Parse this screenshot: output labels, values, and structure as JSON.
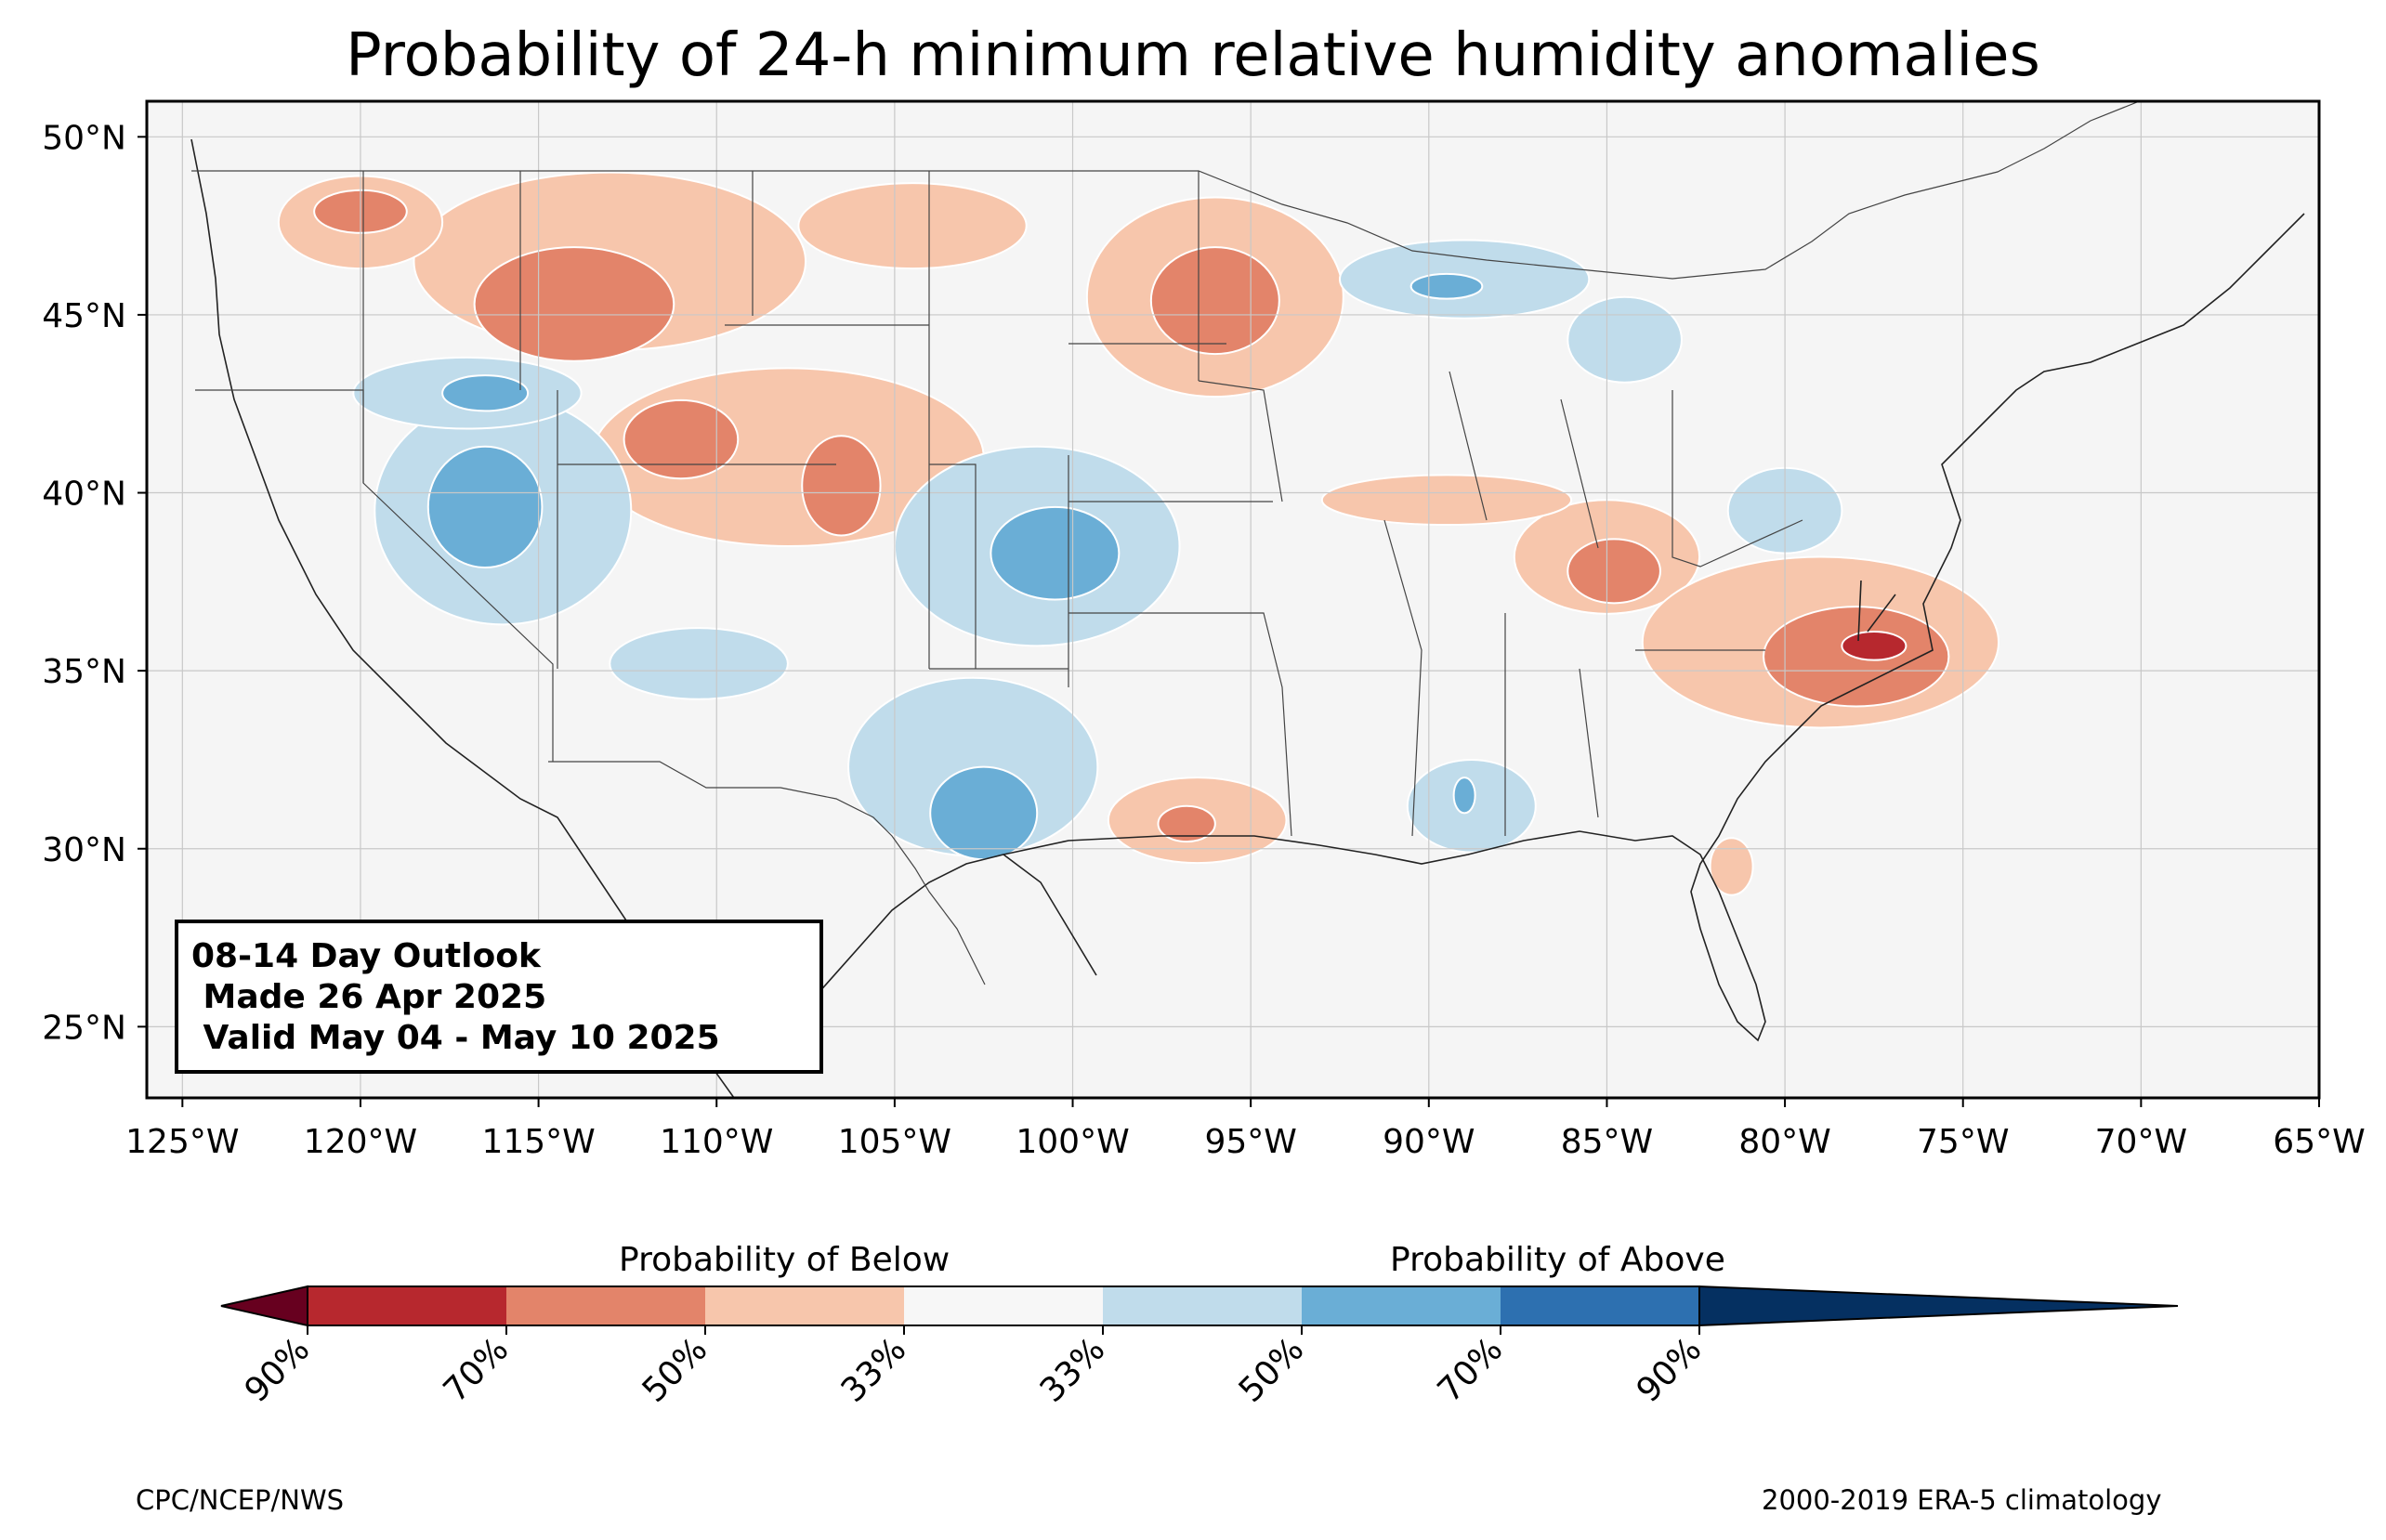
{
  "title": "Probability of 24-h minimum relative humidity anomalies",
  "map": {
    "longitude_ticks": [
      "125°W",
      "120°W",
      "115°W",
      "110°W",
      "105°W",
      "100°W",
      "95°W",
      "90°W",
      "85°W",
      "80°W",
      "75°W",
      "70°W",
      "65°W"
    ],
    "latitude_ticks": [
      "25°N",
      "30°N",
      "35°N",
      "40°N",
      "45°N",
      "50°N"
    ],
    "lon_range": [
      -126,
      -65
    ],
    "lat_range": [
      23,
      51
    ],
    "gridlines": true,
    "background_color": "#f5f5f5",
    "regions": [
      {
        "category": "below-33",
        "color": "#f7c6ac",
        "lon": -113,
        "lat": 46.5,
        "rx": 5.5,
        "ry": 2.5
      },
      {
        "category": "below-50",
        "color": "#e3846a",
        "lon": -114,
        "lat": 45.3,
        "rx": 2.8,
        "ry": 1.6
      },
      {
        "category": "below-33",
        "color": "#f7c6ac",
        "lon": -120,
        "lat": 47.6,
        "rx": 2.3,
        "ry": 1.3
      },
      {
        "category": "below-50",
        "color": "#e3846a",
        "lon": -120,
        "lat": 47.9,
        "rx": 1.3,
        "ry": 0.6
      },
      {
        "category": "below-33",
        "color": "#f7c6ac",
        "lon": -104.5,
        "lat": 47.5,
        "rx": 3.2,
        "ry": 1.2
      },
      {
        "category": "below-33",
        "color": "#f7c6ac",
        "lon": -108,
        "lat": 41,
        "rx": 5.5,
        "ry": 2.5
      },
      {
        "category": "below-50",
        "color": "#e3846a",
        "lon": -111,
        "lat": 41.5,
        "rx": 1.6,
        "ry": 1.1
      },
      {
        "category": "below-50",
        "color": "#e3846a",
        "lon": -106.5,
        "lat": 40.2,
        "rx": 1.1,
        "ry": 1.4
      },
      {
        "category": "below-33",
        "color": "#f7c6ac",
        "lon": -96,
        "lat": 45.5,
        "rx": 3.6,
        "ry": 2.8
      },
      {
        "category": "below-50",
        "color": "#e3846a",
        "lon": -96,
        "lat": 45.4,
        "rx": 1.8,
        "ry": 1.5
      },
      {
        "category": "below-33",
        "color": "#f7c6ac",
        "lon": -85,
        "lat": 38.2,
        "rx": 2.6,
        "ry": 1.6
      },
      {
        "category": "below-50",
        "color": "#e3846a",
        "lon": -84.8,
        "lat": 37.8,
        "rx": 1.3,
        "ry": 0.9
      },
      {
        "category": "below-33",
        "color": "#f7c6ac",
        "lon": -79,
        "lat": 35.8,
        "rx": 5,
        "ry": 2.4
      },
      {
        "category": "below-50",
        "color": "#e3846a",
        "lon": -78,
        "lat": 35.4,
        "rx": 2.6,
        "ry": 1.4
      },
      {
        "category": "below-70",
        "color": "#b7282e",
        "lon": -77.5,
        "lat": 35.7,
        "rx": 0.9,
        "ry": 0.4
      },
      {
        "category": "below-33",
        "color": "#f7c6ac",
        "lon": -96.5,
        "lat": 30.8,
        "rx": 2.5,
        "ry": 1.2
      },
      {
        "category": "below-50",
        "color": "#e3846a",
        "lon": -96.8,
        "lat": 30.7,
        "rx": 0.8,
        "ry": 0.5
      },
      {
        "category": "below-33",
        "color": "#f7c6ac",
        "lon": -89.5,
        "lat": 39.8,
        "rx": 3.5,
        "ry": 0.7
      },
      {
        "category": "below-33",
        "color": "#f7c6ac",
        "lon": -81.5,
        "lat": 29.5,
        "rx": 0.6,
        "ry": 0.8
      },
      {
        "category": "above-33",
        "color": "#c0dceb",
        "lon": -116,
        "lat": 39.5,
        "rx": 3.6,
        "ry": 3.2
      },
      {
        "category": "above-50",
        "color": "#6aaed6",
        "lon": -116.5,
        "lat": 39.6,
        "rx": 1.6,
        "ry": 1.7
      },
      {
        "category": "above-33",
        "color": "#c0dceb",
        "lon": -117,
        "lat": 42.8,
        "rx": 3.2,
        "ry": 1.0
      },
      {
        "category": "above-50",
        "color": "#6aaed6",
        "lon": -116.5,
        "lat": 42.8,
        "rx": 1.2,
        "ry": 0.5
      },
      {
        "category": "above-33",
        "color": "#c0dceb",
        "lon": -101,
        "lat": 38.5,
        "rx": 4,
        "ry": 2.8
      },
      {
        "category": "above-50",
        "color": "#6aaed6",
        "lon": -100.5,
        "lat": 38.3,
        "rx": 1.8,
        "ry": 1.3
      },
      {
        "category": "above-33",
        "color": "#c0dceb",
        "lon": -102.8,
        "lat": 32.3,
        "rx": 3.5,
        "ry": 2.5
      },
      {
        "category": "above-50",
        "color": "#6aaed6",
        "lon": -102.5,
        "lat": 31,
        "rx": 1.5,
        "ry": 1.3
      },
      {
        "category": "above-33",
        "color": "#c0dceb",
        "lon": -88.8,
        "lat": 31.2,
        "rx": 1.8,
        "ry": 1.3
      },
      {
        "category": "above-50",
        "color": "#6aaed6",
        "lon": -89,
        "lat": 31.5,
        "rx": 0.3,
        "ry": 0.5
      },
      {
        "category": "above-33",
        "color": "#c0dceb",
        "lon": -89,
        "lat": 46,
        "rx": 3.5,
        "ry": 1.1
      },
      {
        "category": "above-50",
        "color": "#6aaed6",
        "lon": -89.5,
        "lat": 45.8,
        "rx": 1.0,
        "ry": 0.35
      },
      {
        "category": "above-33",
        "color": "#c0dceb",
        "lon": -84.5,
        "lat": 44.3,
        "rx": 1.6,
        "ry": 1.2
      },
      {
        "category": "above-33",
        "color": "#c0dceb",
        "lon": -80,
        "lat": 39.5,
        "rx": 1.6,
        "ry": 1.2
      },
      {
        "category": "above-33",
        "color": "#c0dceb",
        "lon": -110.5,
        "lat": 35.2,
        "rx": 2.5,
        "ry": 1.0
      }
    ]
  },
  "info_box": {
    "line1": "08-14 Day Outlook",
    "line2": " Made 26 Apr 2025",
    "line3": " Valid May 04 - May 10 2025"
  },
  "colorbar": {
    "below_label": "Probability of Below",
    "above_label": "Probability of Above",
    "colors": [
      "#67001f",
      "#b2182b",
      "#d6604d",
      "#f4a582",
      "#fddbc7",
      "#f7f7f7",
      "#d1e5f0",
      "#92c5de",
      "#4393c3",
      "#2166ac",
      "#053061"
    ],
    "bins": [
      {
        "color": "#b7282e"
      },
      {
        "color": "#e3846a"
      },
      {
        "color": "#f7c6ac"
      },
      {
        "color": "#f7f7f7"
      },
      {
        "color": "#c0dceb"
      },
      {
        "color": "#6aaed6"
      },
      {
        "color": "#2d70b0"
      }
    ],
    "end_colors": {
      "low": "#67001f",
      "high": "#053061"
    },
    "tick_labels": [
      "90%",
      "70%",
      "50%",
      "33%",
      "33%",
      "50%",
      "70%",
      "90%"
    ]
  },
  "footer": {
    "left": "CPC/NCEP/NWS",
    "right": "2000-2019 ERA-5 climatology"
  }
}
